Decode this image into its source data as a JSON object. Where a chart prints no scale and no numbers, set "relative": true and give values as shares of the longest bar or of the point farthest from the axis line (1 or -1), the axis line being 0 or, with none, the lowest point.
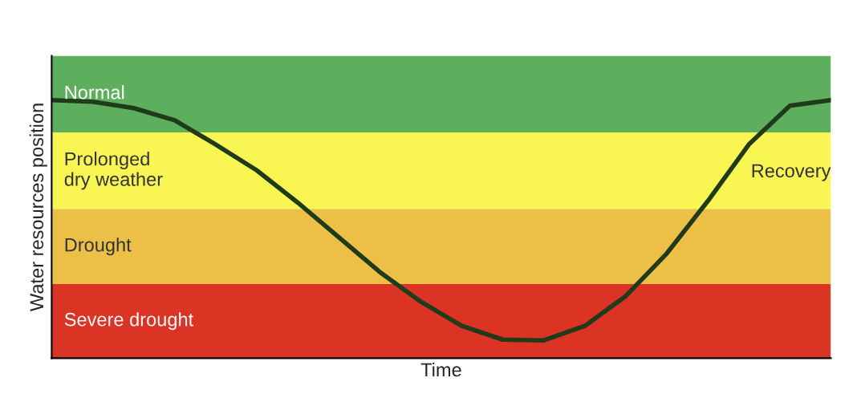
{
  "chart_data": {
    "type": "line",
    "relative": true,
    "xlabel": "Time",
    "ylabel": "Water resources position",
    "categories": [
      null,
      null,
      null,
      null,
      null,
      null,
      null,
      null,
      null,
      null,
      null,
      null,
      null,
      null,
      null,
      null,
      null,
      null,
      null,
      null
    ],
    "series": [
      {
        "color": "#1f3b1a",
        "values": [
          1.0,
          0.994,
          0.969,
          0.922,
          0.828,
          0.728,
          0.603,
          0.469,
          0.334,
          0.219,
          0.125,
          0.072,
          0.069,
          0.125,
          0.241,
          0.406,
          0.609,
          0.828,
          0.978,
          1.0
        ]
      }
    ],
    "bands": [
      {
        "axis": "y",
        "from": 0.875,
        "to": 1.172,
        "label": "Normal",
        "color": "#5daf5e"
      },
      {
        "axis": "y",
        "from": 0.578,
        "to": 0.875,
        "label": "Prolonged\ndry weather",
        "color": "#f9f552"
      },
      {
        "axis": "y",
        "from": 0.2875,
        "to": 0.578,
        "label": "Drought",
        "color": "#ecbf46"
      },
      {
        "axis": "y",
        "from": 0,
        "to": 0.2875,
        "label": "Severe drought",
        "color": "#dc3424"
      }
    ],
    "annotations": [
      "Recovery"
    ],
    "legend": false,
    "marker": "none",
    "line_style": "solid"
  }
}
